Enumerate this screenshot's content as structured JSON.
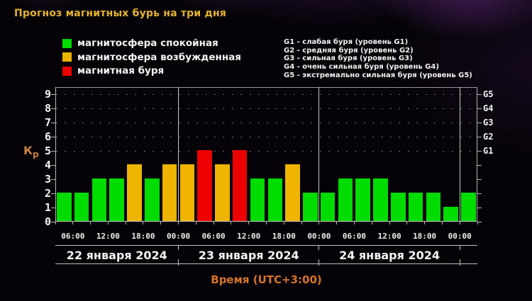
{
  "title": "Прогноз магнитных бурь на три дня",
  "legend": {
    "items": [
      {
        "id": "quiet",
        "label": "магнитосфера спокойная",
        "color": "#00dc00"
      },
      {
        "id": "excited",
        "label": "магнитосфера возбужденная",
        "color": "#eeb400"
      },
      {
        "id": "storm",
        "label": "магнитная буря",
        "color": "#ed0000"
      }
    ]
  },
  "storm_scale_legend": [
    "G1 - слабая буря (уровень G1)",
    "G2 - средняя буря (уровень G2)",
    "G3 - сильная буря (уровень G3)",
    "G4 - очень сильная буря (уровень G4)",
    "G5 - экстремально сильная буря (уровень G5)"
  ],
  "axis": {
    "kp_label_main": "К",
    "kp_label_sub": "р",
    "x_label": "Время (UTC+3:00)",
    "y_ticks": [
      "0",
      "1",
      "2",
      "3",
      "4",
      "5",
      "6",
      "7",
      "8",
      "9"
    ],
    "right_ticks": [
      {
        "kp": 5,
        "label": "G1"
      },
      {
        "kp": 6,
        "label": "G2"
      },
      {
        "kp": 7,
        "label": "G3"
      },
      {
        "kp": 8,
        "label": "G4"
      },
      {
        "kp": 9,
        "label": "G5"
      }
    ]
  },
  "chart_data": {
    "type": "bar",
    "title": "Прогноз магнитных бурь на три дня",
    "ylabel": "Кр",
    "xlabel": "Время (UTC+3:00)",
    "ylim": [
      0,
      9.5
    ],
    "bar_interval_hours": 3,
    "grid": "dotted rows at Kp 5-9 only",
    "legend_position": "top-left",
    "days": [
      {
        "date": "22 января 2024",
        "values": [
          2,
          2,
          3,
          3,
          4,
          3,
          4
        ]
      },
      {
        "date": "23 января 2024",
        "values": [
          4,
          5,
          4,
          5,
          3,
          3,
          4,
          2
        ]
      },
      {
        "date": "24 января 2024",
        "values": [
          2,
          3,
          3,
          3,
          2,
          2,
          2,
          1
        ]
      }
    ],
    "trailing_values": [
      2
    ],
    "time_ticks": [
      {
        "hour": 3,
        "label": "06:00"
      },
      {
        "hour": 9,
        "label": "12:00"
      },
      {
        "hour": 15,
        "label": "18:00"
      },
      {
        "hour": 21,
        "label": "00:00"
      },
      {
        "hour": 27,
        "label": "06:00"
      },
      {
        "hour": 33,
        "label": "12:00"
      },
      {
        "hour": 39,
        "label": "18:00"
      },
      {
        "hour": 45,
        "label": "00:00"
      },
      {
        "hour": 51,
        "label": "06:00"
      },
      {
        "hour": 57,
        "label": "12:00"
      },
      {
        "hour": 63,
        "label": "18:00"
      },
      {
        "hour": 69,
        "label": "00:00"
      }
    ],
    "day_boundaries_hours": [
      0,
      21,
      45,
      69
    ],
    "color_rules": {
      "storm_min_kp": 5,
      "excited_kp": 4
    },
    "colors": {
      "quiet": "#00dc00",
      "excited": "#eeb400",
      "storm": "#ed0000"
    }
  }
}
